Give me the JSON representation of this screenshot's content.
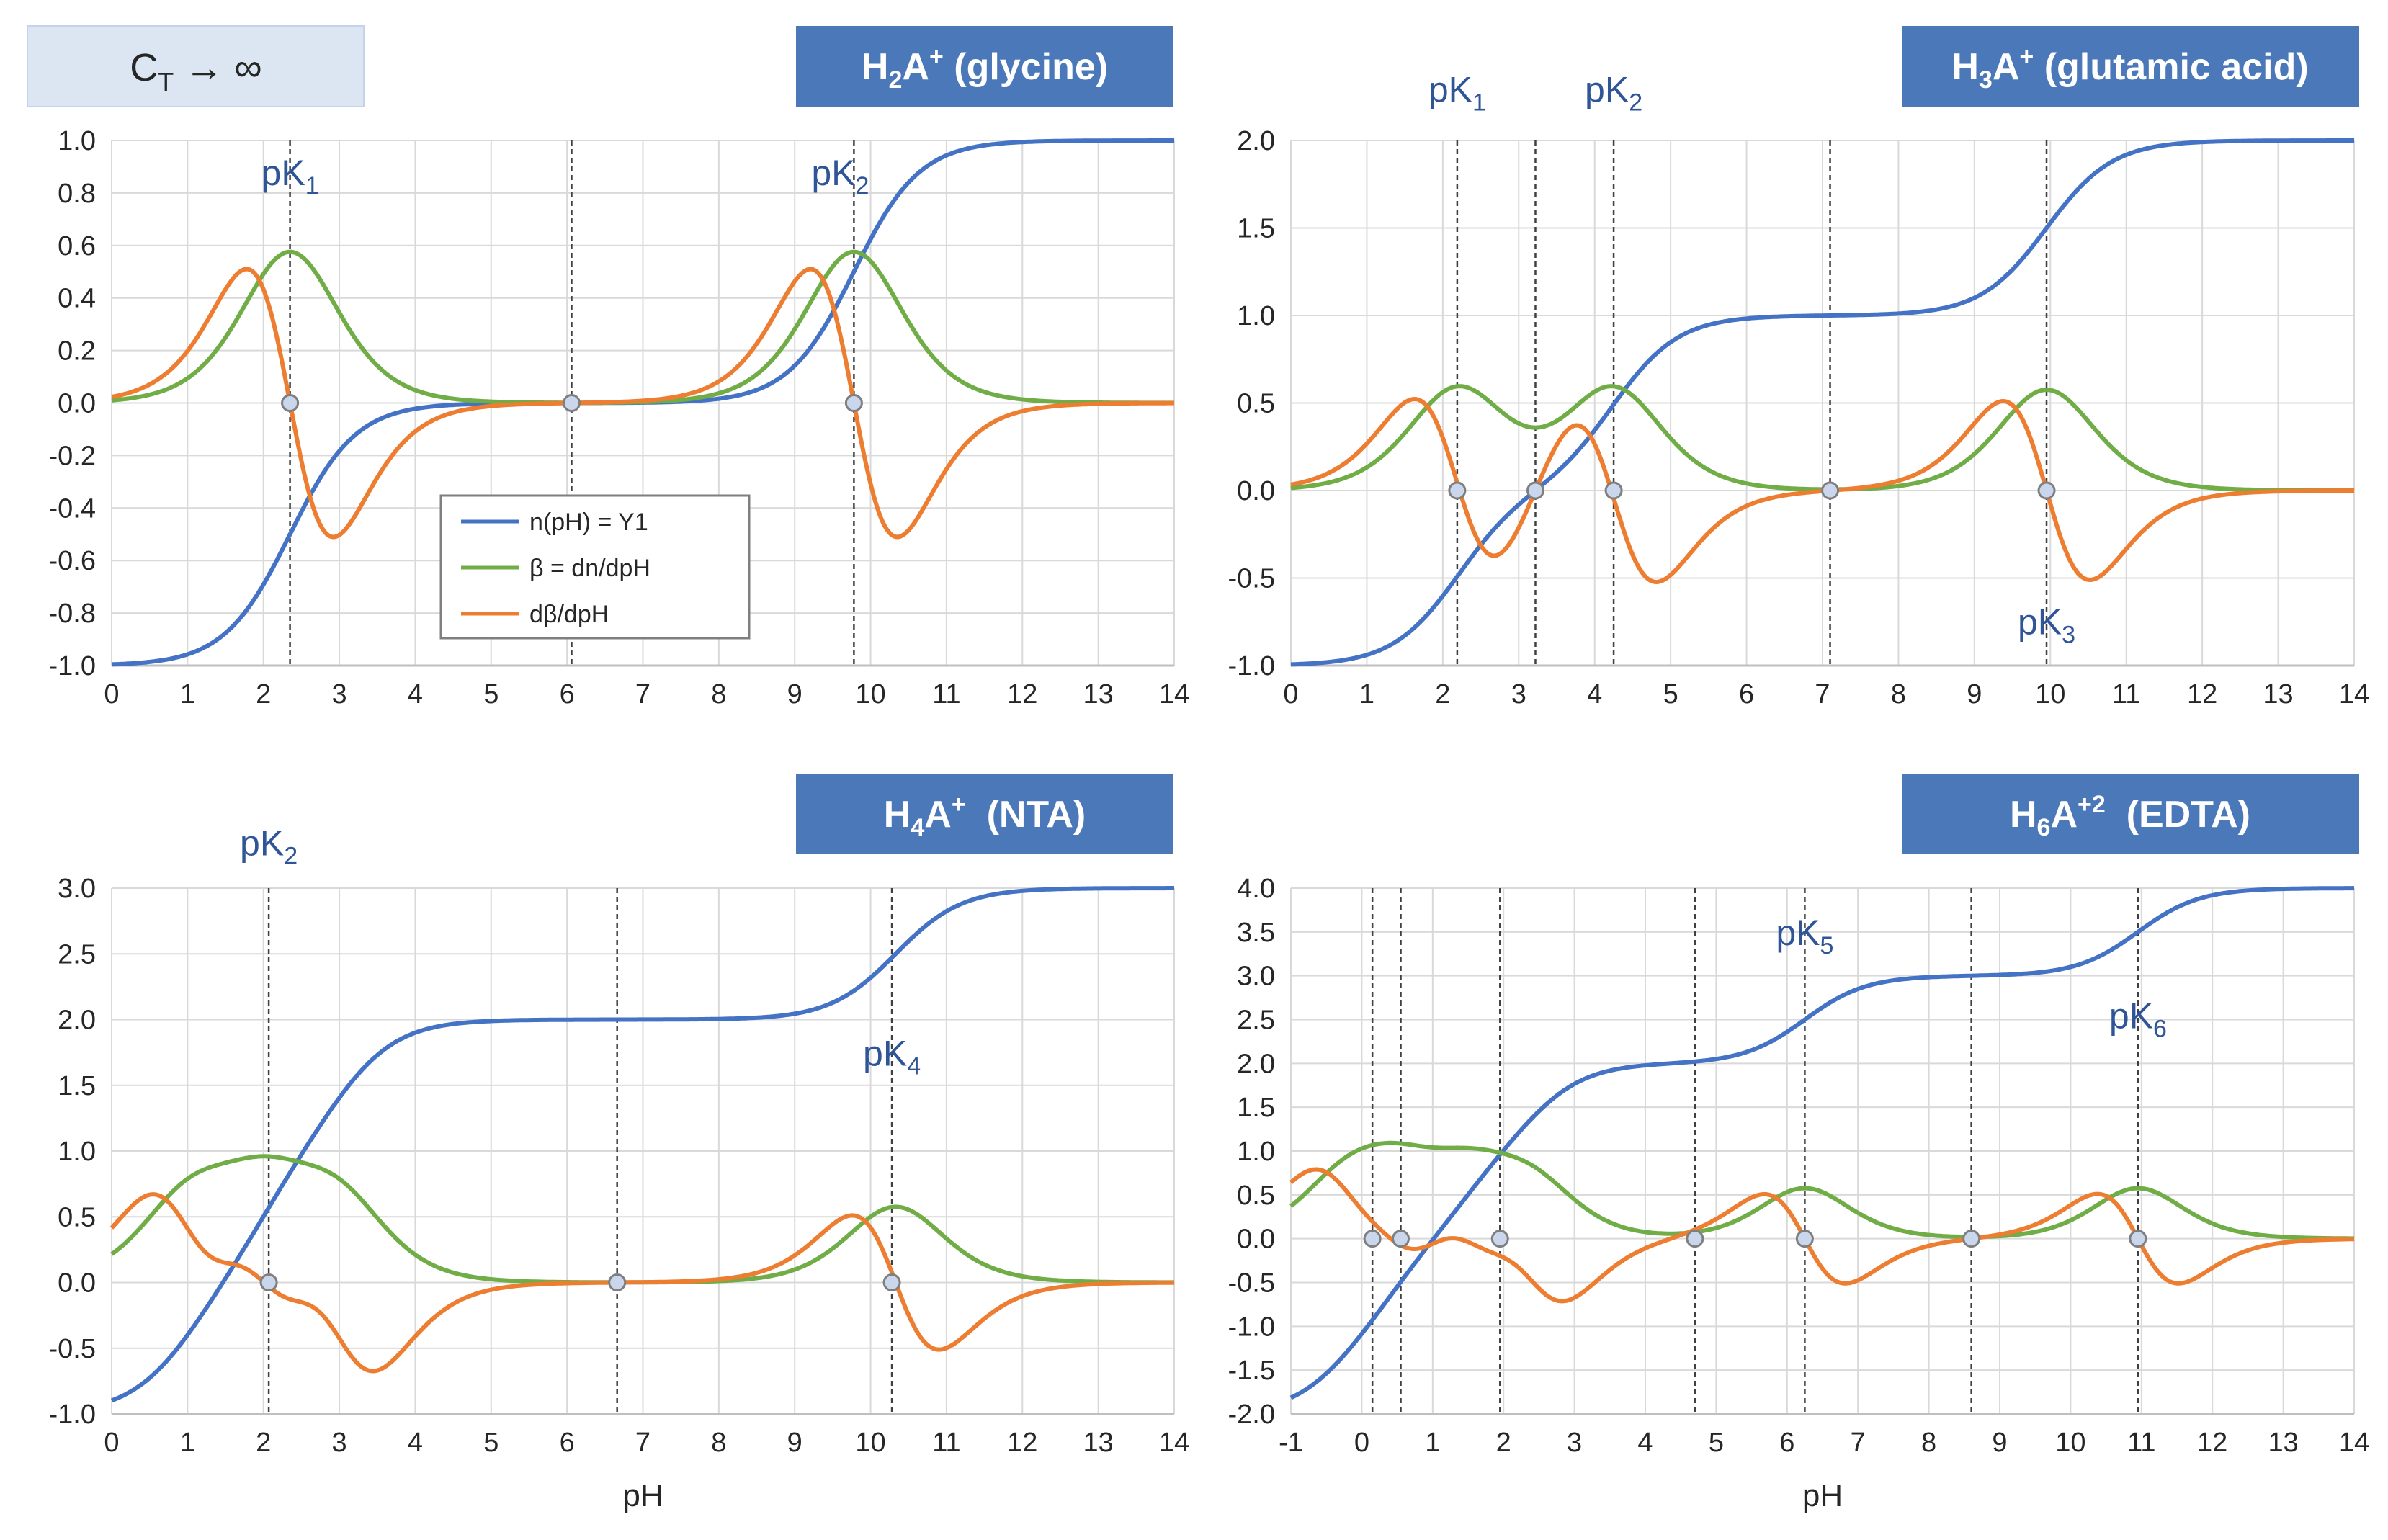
{
  "colors": {
    "blue": "#4472C4",
    "green": "#70AD47",
    "orange": "#ED7D31",
    "title_box": "#4A78B9",
    "ct_box": "#DCE6F2",
    "grid": "#D9D9D9",
    "axis_text": "#262626",
    "pk_text": "#2F5597",
    "dot_fill": "#C9D6EC",
    "dot_stroke": "#7F7F7F"
  },
  "ct_box": {
    "main": "C",
    "sub": "T",
    "arrow": "→",
    "inf": "∞"
  },
  "legend": {
    "items": [
      {
        "label": "n(pH) = Y1",
        "color": "#4472C4"
      },
      {
        "label": "β = dn/dpH",
        "color": "#70AD47"
      },
      {
        "label": "dβ/dpH",
        "color": "#ED7D31"
      }
    ]
  },
  "chart_data": [
    {
      "type": "line",
      "title": {
        "base": "H",
        "sub": "2",
        "mid": "A",
        "sup": "+",
        "suffix": " (glycine)"
      },
      "xlabel": "",
      "xlim": [
        0,
        14
      ],
      "ylim": [
        -1.0,
        1.0
      ],
      "xticks": [
        "0",
        "1",
        "2",
        "3",
        "4",
        "5",
        "6",
        "7",
        "8",
        "9",
        "10",
        "11",
        "12",
        "13",
        "14"
      ],
      "yticks": [
        "-1.0",
        "-0.8",
        "-0.6",
        "-0.4",
        "-0.2",
        "0.0",
        "0.2",
        "0.4",
        "0.6",
        "0.8",
        "1.0"
      ],
      "n_offset": -1,
      "pK": [
        2.35,
        9.78
      ],
      "vlines": [
        2.35,
        6.06,
        9.78
      ],
      "markers": [
        2.35,
        6.06,
        9.78
      ],
      "pk_labels": [
        {
          "base": "pK",
          "sub": "1",
          "x": 2.35,
          "y": 0.83
        },
        {
          "base": "pK",
          "sub": "2",
          "x": 9.6,
          "y": 0.83
        }
      ],
      "series": [
        {
          "name": "n(pH) = Y1",
          "color": "#4472C4"
        },
        {
          "name": "β = dn/dpH",
          "color": "#70AD47"
        },
        {
          "name": "dβ/dpH",
          "color": "#ED7D31"
        }
      ]
    },
    {
      "type": "line",
      "title": {
        "base": "H",
        "sub": "3",
        "mid": "A",
        "sup": "+",
        "suffix": " (glutamic acid)"
      },
      "xlabel": "",
      "xlim": [
        0,
        14
      ],
      "ylim": [
        -1.0,
        2.0
      ],
      "xticks": [
        "0",
        "1",
        "2",
        "3",
        "4",
        "5",
        "6",
        "7",
        "8",
        "9",
        "10",
        "11",
        "12",
        "13",
        "14"
      ],
      "yticks": [
        "-1.0",
        "-0.5",
        "0.0",
        "0.5",
        "1.0",
        "1.5",
        "2.0"
      ],
      "n_offset": -1,
      "pK": [
        2.19,
        4.25,
        9.95
      ],
      "vlines": [
        2.19,
        3.22,
        4.25,
        7.1,
        9.95
      ],
      "markers": [
        2.19,
        3.22,
        4.25,
        7.1,
        9.95
      ],
      "pk_labels": [
        {
          "base": "pK",
          "sub": "1",
          "x": 2.19,
          "y": 2.22
        },
        {
          "base": "pK",
          "sub": "2",
          "x": 4.25,
          "y": 2.22
        },
        {
          "base": "pK",
          "sub": "3",
          "x": 9.95,
          "y": -0.82
        }
      ],
      "series": [
        {
          "name": "n(pH) = Y1",
          "color": "#4472C4"
        },
        {
          "name": "β = dn/dpH",
          "color": "#70AD47"
        },
        {
          "name": "dβ/dpH",
          "color": "#ED7D31"
        }
      ]
    },
    {
      "type": "line",
      "title": {
        "base": "H",
        "sub": "4",
        "mid": "A",
        "sup": "+",
        "suffix": "  (NTA)"
      },
      "xlabel": "pH",
      "xlim": [
        0,
        14
      ],
      "ylim": [
        -1.0,
        3.0
      ],
      "xticks": [
        "0",
        "1",
        "2",
        "3",
        "4",
        "5",
        "6",
        "7",
        "8",
        "9",
        "10",
        "11",
        "12",
        "13",
        "14"
      ],
      "yticks": [
        "-1.0",
        "-0.5",
        "0.0",
        "0.5",
        "1.0",
        "1.5",
        "2.0",
        "2.5",
        "3.0"
      ],
      "n_offset": -1,
      "pK": [
        1.0,
        2.0,
        2.99,
        10.33
      ],
      "vlines": [
        2.07,
        6.66,
        10.28
      ],
      "markers": [
        2.07,
        6.66,
        10.28
      ],
      "pk_labels": [
        {
          "base": "pK",
          "sub": "2",
          "x": 2.07,
          "y": 3.25
        },
        {
          "base": "pK",
          "sub": "4",
          "x": 10.28,
          "y": 1.65
        }
      ],
      "series": [
        {
          "name": "n(pH) = Y1",
          "color": "#4472C4"
        },
        {
          "name": "β = dn/dpH",
          "color": "#70AD47"
        },
        {
          "name": "dβ/dpH",
          "color": "#ED7D31"
        }
      ]
    },
    {
      "type": "line",
      "title": {
        "base": "H",
        "sub": "6",
        "mid": "A",
        "sup": "+2",
        "suffix": "  (EDTA)"
      },
      "xlabel": "pH",
      "xlim": [
        -1,
        14
      ],
      "ylim": [
        -2.0,
        4.0
      ],
      "xticks": [
        "-1",
        "0",
        "1",
        "2",
        "3",
        "4",
        "5",
        "6",
        "7",
        "8",
        "9",
        "10",
        "11",
        "12",
        "13",
        "14"
      ],
      "yticks": [
        "-2.0",
        "-1.5",
        "-1.0",
        "-0.5",
        "0.0",
        "0.5",
        "1.0",
        "1.5",
        "2.0",
        "2.5",
        "3.0",
        "3.5",
        "4.0"
      ],
      "n_offset": -2,
      "pK": [
        -0.25,
        0.5,
        1.5,
        2.4,
        6.25,
        10.95
      ],
      "vlines": [
        0.15,
        0.55,
        1.95,
        4.7,
        6.25,
        8.6,
        10.95
      ],
      "markers": [
        0.15,
        0.55,
        1.95,
        4.7,
        6.25,
        8.6,
        10.95
      ],
      "pk_labels": [
        {
          "base": "pK",
          "sub": "5",
          "x": 6.25,
          "y": 3.35
        },
        {
          "base": "pK",
          "sub": "6",
          "x": 10.95,
          "y": 2.4
        }
      ],
      "series": [
        {
          "name": "n(pH) = Y1",
          "color": "#4472C4"
        },
        {
          "name": "β = dn/dpH",
          "color": "#70AD47"
        },
        {
          "name": "dβ/dpH",
          "color": "#ED7D31"
        }
      ]
    }
  ]
}
